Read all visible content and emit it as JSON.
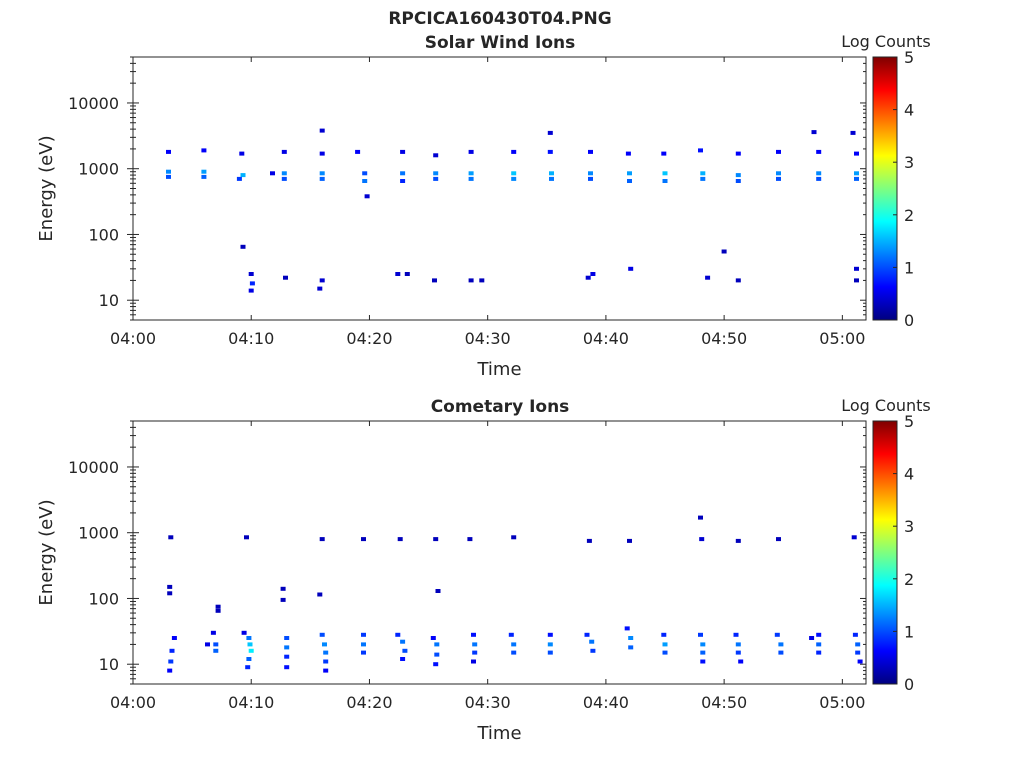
{
  "figure_title": "RPCICA160430T04.PNG",
  "colorscale": [
    "#00007f",
    "#0000ff",
    "#007fff",
    "#00ffff",
    "#7fff7f",
    "#ffff00",
    "#ff7f00",
    "#ff0000",
    "#7f0000"
  ],
  "chart_data": [
    {
      "type": "heatmap",
      "title": "Solar Wind Ions",
      "xlabel": "Time",
      "ylabel": "Energy (eV)",
      "xticks": [
        "04:00",
        "04:10",
        "04:20",
        "04:30",
        "04:40",
        "04:50",
        "05:00"
      ],
      "xlim_minutes": [
        0,
        62
      ],
      "yscale": "log",
      "ylim": [
        5,
        50000
      ],
      "yticks": [
        10,
        100,
        1000,
        10000
      ],
      "colorbar": {
        "label": "Log Counts",
        "range": [
          0,
          5
        ],
        "ticks": [
          "0",
          "1",
          "2",
          "3",
          "4",
          "5"
        ]
      },
      "cells": [
        [
          3.0,
          1800,
          0.6
        ],
        [
          3.0,
          900,
          1.3
        ],
        [
          3.0,
          750,
          1.0
        ],
        [
          6.0,
          1900,
          0.6
        ],
        [
          6.0,
          900,
          1.4
        ],
        [
          6.0,
          750,
          1.1
        ],
        [
          9.2,
          1700,
          0.5
        ],
        [
          9.3,
          800,
          1.5
        ],
        [
          9.0,
          700,
          0.9
        ],
        [
          9.3,
          65,
          0.3
        ],
        [
          10.0,
          25,
          0.4
        ],
        [
          10.1,
          18,
          0.8
        ],
        [
          10.0,
          14,
          0.5
        ],
        [
          11.8,
          850,
          0.5
        ],
        [
          12.8,
          1800,
          0.5
        ],
        [
          12.8,
          850,
          1.3
        ],
        [
          12.8,
          700,
          1.0
        ],
        [
          12.9,
          22,
          0.3
        ],
        [
          16.0,
          3800,
          0.4
        ],
        [
          16.0,
          1700,
          0.5
        ],
        [
          16.0,
          850,
          1.3
        ],
        [
          16.0,
          700,
          1.1
        ],
        [
          16.0,
          20,
          0.4
        ],
        [
          15.8,
          15,
          0.4
        ],
        [
          19.0,
          1800,
          0.6
        ],
        [
          19.6,
          850,
          1.0
        ],
        [
          19.6,
          650,
          1.2
        ],
        [
          19.8,
          380,
          0.4
        ],
        [
          22.4,
          25,
          0.4
        ],
        [
          22.8,
          1800,
          0.5
        ],
        [
          22.8,
          850,
          1.2
        ],
        [
          22.8,
          650,
          0.8
        ],
        [
          23.2,
          25,
          0.3
        ],
        [
          25.6,
          1600,
          0.4
        ],
        [
          25.6,
          850,
          1.3
        ],
        [
          25.6,
          700,
          1.0
        ],
        [
          25.5,
          20,
          0.3
        ],
        [
          28.6,
          1800,
          0.5
        ],
        [
          28.6,
          850,
          1.4
        ],
        [
          28.6,
          700,
          1.2
        ],
        [
          28.6,
          20,
          0.3
        ],
        [
          29.5,
          20,
          0.3
        ],
        [
          32.2,
          1800,
          0.6
        ],
        [
          32.2,
          850,
          1.6
        ],
        [
          32.2,
          700,
          1.3
        ],
        [
          35.3,
          3500,
          0.4
        ],
        [
          35.3,
          1800,
          0.7
        ],
        [
          35.4,
          850,
          1.5
        ],
        [
          35.4,
          700,
          1.2
        ],
        [
          38.7,
          1800,
          0.6
        ],
        [
          38.7,
          850,
          1.3
        ],
        [
          38.7,
          700,
          1.0
        ],
        [
          38.5,
          22,
          0.4
        ],
        [
          38.9,
          25,
          0.5
        ],
        [
          41.9,
          1700,
          0.6
        ],
        [
          42.0,
          850,
          1.4
        ],
        [
          42.0,
          650,
          1.1
        ],
        [
          42.1,
          30,
          0.5
        ],
        [
          44.9,
          1700,
          0.6
        ],
        [
          45.0,
          850,
          1.6
        ],
        [
          45.0,
          650,
          1.2
        ],
        [
          48.0,
          1900,
          0.7
        ],
        [
          48.2,
          850,
          1.5
        ],
        [
          48.2,
          700,
          1.2
        ],
        [
          48.6,
          22,
          0.4
        ],
        [
          50.0,
          55,
          0.3
        ],
        [
          51.2,
          1700,
          0.6
        ],
        [
          51.2,
          800,
          1.3
        ],
        [
          51.2,
          650,
          1.0
        ],
        [
          51.2,
          20,
          0.3
        ],
        [
          54.6,
          1800,
          0.6
        ],
        [
          54.6,
          850,
          1.3
        ],
        [
          54.6,
          700,
          1.0
        ],
        [
          57.6,
          3600,
          0.4
        ],
        [
          58.0,
          1800,
          0.6
        ],
        [
          58.0,
          850,
          1.3
        ],
        [
          58.0,
          700,
          1.0
        ],
        [
          60.9,
          3500,
          0.4
        ],
        [
          61.2,
          1700,
          0.6
        ],
        [
          61.2,
          850,
          1.4
        ],
        [
          61.2,
          700,
          1.1
        ],
        [
          61.2,
          30,
          0.4
        ],
        [
          61.2,
          20,
          0.3
        ]
      ]
    },
    {
      "type": "heatmap",
      "title": "Cometary Ions",
      "xlabel": "Time",
      "ylabel": "Energy (eV)",
      "xticks": [
        "04:00",
        "04:10",
        "04:20",
        "04:30",
        "04:40",
        "04:50",
        "05:00"
      ],
      "xlim_minutes": [
        0,
        62
      ],
      "yscale": "log",
      "ylim": [
        5,
        50000
      ],
      "yticks": [
        10,
        100,
        1000,
        10000
      ],
      "colorbar": {
        "label": "Log Counts",
        "range": [
          0,
          5
        ],
        "ticks": [
          "0",
          "1",
          "2",
          "3",
          "4",
          "5"
        ]
      },
      "cells": [
        [
          3.2,
          850,
          0.3
        ],
        [
          3.1,
          150,
          0.3
        ],
        [
          3.1,
          120,
          0.3
        ],
        [
          3.5,
          25,
          0.6
        ],
        [
          3.3,
          16,
          0.8
        ],
        [
          3.2,
          11,
          0.9
        ],
        [
          3.1,
          8,
          0.6
        ],
        [
          7.2,
          75,
          0.3
        ],
        [
          7.2,
          65,
          0.3
        ],
        [
          6.3,
          20,
          0.5
        ],
        [
          6.8,
          30,
          0.5
        ],
        [
          7.0,
          20,
          1.0
        ],
        [
          7.0,
          16,
          1.1
        ],
        [
          9.6,
          850,
          0.3
        ],
        [
          9.4,
          30,
          0.5
        ],
        [
          9.8,
          25,
          1.2
        ],
        [
          9.9,
          20,
          1.6
        ],
        [
          10.0,
          16,
          1.8
        ],
        [
          9.8,
          12,
          1.1
        ],
        [
          9.7,
          9,
          0.8
        ],
        [
          12.7,
          140,
          0.3
        ],
        [
          12.7,
          95,
          0.3
        ],
        [
          13.0,
          25,
          1.0
        ],
        [
          13.0,
          18,
          1.2
        ],
        [
          13.0,
          13,
          0.8
        ],
        [
          13.0,
          9,
          0.7
        ],
        [
          16.0,
          800,
          0.3
        ],
        [
          15.8,
          115,
          0.3
        ],
        [
          16.0,
          28,
          1.0
        ],
        [
          16.2,
          20,
          1.3
        ],
        [
          16.3,
          15,
          1.2
        ],
        [
          16.3,
          11,
          0.9
        ],
        [
          16.3,
          8,
          0.6
        ],
        [
          19.5,
          800,
          0.3
        ],
        [
          19.5,
          28,
          0.9
        ],
        [
          19.5,
          20,
          1.2
        ],
        [
          19.5,
          15,
          0.9
        ],
        [
          22.6,
          800,
          0.3
        ],
        [
          22.4,
          28,
          0.8
        ],
        [
          22.8,
          22,
          1.2
        ],
        [
          23.0,
          16,
          1.0
        ],
        [
          22.8,
          12,
          0.7
        ],
        [
          25.6,
          800,
          0.3
        ],
        [
          25.8,
          130,
          0.3
        ],
        [
          25.4,
          25,
          0.6
        ],
        [
          25.7,
          20,
          1.2
        ],
        [
          25.7,
          14,
          1.0
        ],
        [
          25.6,
          10,
          0.7
        ],
        [
          28.5,
          800,
          0.3
        ],
        [
          28.8,
          28,
          0.7
        ],
        [
          28.9,
          20,
          1.2
        ],
        [
          28.9,
          15,
          0.9
        ],
        [
          28.8,
          11,
          0.5
        ],
        [
          32.2,
          850,
          0.3
        ],
        [
          32.0,
          28,
          0.8
        ],
        [
          32.2,
          20,
          1.2
        ],
        [
          32.2,
          15,
          1.0
        ],
        [
          35.3,
          28,
          0.7
        ],
        [
          35.3,
          20,
          1.3
        ],
        [
          35.3,
          15,
          1.0
        ],
        [
          38.6,
          750,
          0.3
        ],
        [
          38.4,
          28,
          0.8
        ],
        [
          38.8,
          22,
          1.2
        ],
        [
          38.9,
          16,
          0.9
        ],
        [
          42.0,
          750,
          0.3
        ],
        [
          41.8,
          35,
          0.7
        ],
        [
          42.1,
          25,
          1.3
        ],
        [
          42.1,
          18,
          1.1
        ],
        [
          44.9,
          28,
          0.8
        ],
        [
          45.0,
          20,
          1.4
        ],
        [
          45.0,
          15,
          1.0
        ],
        [
          48.0,
          1700,
          0.3
        ],
        [
          48.1,
          800,
          0.4
        ],
        [
          48.0,
          28,
          0.9
        ],
        [
          48.2,
          20,
          1.3
        ],
        [
          48.2,
          15,
          1.1
        ],
        [
          48.2,
          11,
          0.7
        ],
        [
          51.2,
          750,
          0.3
        ],
        [
          51.0,
          28,
          0.8
        ],
        [
          51.2,
          20,
          1.2
        ],
        [
          51.2,
          15,
          0.9
        ],
        [
          51.4,
          11,
          0.6
        ],
        [
          54.6,
          800,
          0.3
        ],
        [
          54.5,
          28,
          0.9
        ],
        [
          54.8,
          20,
          1.2
        ],
        [
          54.8,
          15,
          1.0
        ],
        [
          57.4,
          25,
          0.5
        ],
        [
          58.0,
          28,
          0.7
        ],
        [
          58.0,
          20,
          1.1
        ],
        [
          58.0,
          15,
          0.8
        ],
        [
          61.0,
          850,
          0.4
        ],
        [
          61.1,
          28,
          0.8
        ],
        [
          61.3,
          20,
          1.1
        ],
        [
          61.3,
          15,
          0.9
        ],
        [
          61.5,
          11,
          0.6
        ]
      ]
    }
  ]
}
